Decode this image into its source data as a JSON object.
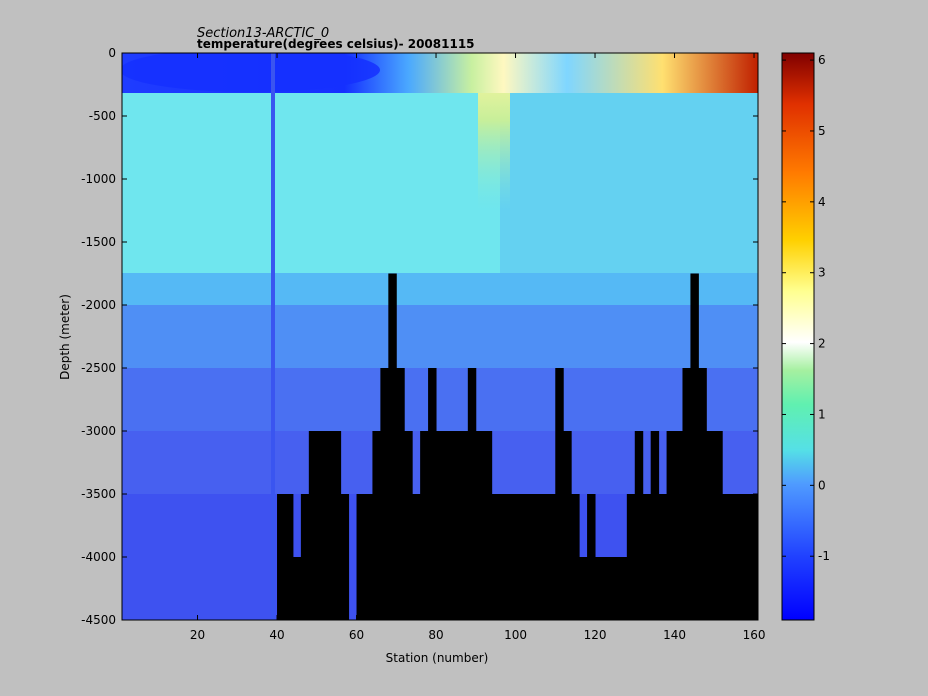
{
  "chart_data": {
    "type": "heatmap",
    "title": "Section13-ARCTIC_0",
    "subtitle": "temperature(degrees  celsius)- 20081115",
    "xlabel": "Station (number)",
    "ylabel": "Depth (meter)",
    "xlim": [
      1,
      161
    ],
    "ylim": [
      -4500,
      0
    ],
    "xticks": [
      20,
      40,
      60,
      80,
      100,
      120,
      140,
      160
    ],
    "yticks": [
      0,
      -500,
      -1000,
      -1500,
      -2000,
      -2500,
      -3000,
      -3500,
      -4000,
      -4500
    ],
    "colorbar": {
      "range": [
        -1.9,
        6.1
      ],
      "ticks": [
        -1,
        0,
        1,
        2,
        3,
        4,
        5,
        6
      ],
      "colormap": "jet"
    },
    "seafloor_color": "#000000",
    "bathymetry": {
      "stations": [
        40,
        42,
        44,
        46,
        48,
        50,
        52,
        54,
        56,
        58,
        60,
        62,
        64,
        66,
        68,
        70,
        72,
        74,
        76,
        78,
        80,
        82,
        84,
        86,
        88,
        90,
        92,
        94,
        96,
        98,
        100,
        102,
        104,
        106,
        108,
        110,
        112,
        114,
        116,
        118,
        120,
        122,
        124,
        126,
        128,
        130,
        132,
        134,
        136,
        138,
        140,
        142,
        144,
        146,
        148,
        150,
        152,
        154,
        156,
        158,
        160
      ],
      "depth": [
        -3500,
        -3500,
        -4000,
        -3500,
        -3000,
        -3000,
        -3000,
        -3000,
        -3500,
        -4500,
        -3500,
        -3500,
        -3000,
        -2500,
        -1750,
        -2500,
        -3000,
        -3500,
        -3000,
        -2500,
        -3000,
        -3000,
        -3000,
        -3000,
        -2500,
        -3000,
        -3000,
        -3500,
        -3500,
        -3500,
        -3500,
        -3500,
        -3500,
        -3500,
        -3500,
        -2500,
        -3000,
        -3500,
        -4000,
        -3500,
        -4000,
        -4000,
        -4000,
        -4000,
        -3500,
        -3000,
        -3500,
        -3000,
        -3500,
        -3000,
        -3000,
        -2500,
        -1750,
        -2500,
        -3000,
        -3000,
        -3500,
        -3500,
        -3500,
        -3500,
        -3500
      ]
    },
    "temperature_zones": {
      "surface_layer_0_250m": -1.5,
      "warm_inflow_core_station_96_to_100": 3.0,
      "warm_surface_station_150_to_161": 5.5,
      "intermediate_250_1700m": 0.1,
      "deep_1700_2500m": -0.3,
      "deep_2500_3500m": -0.8,
      "bottom_3500_4500m": -1.2
    }
  }
}
